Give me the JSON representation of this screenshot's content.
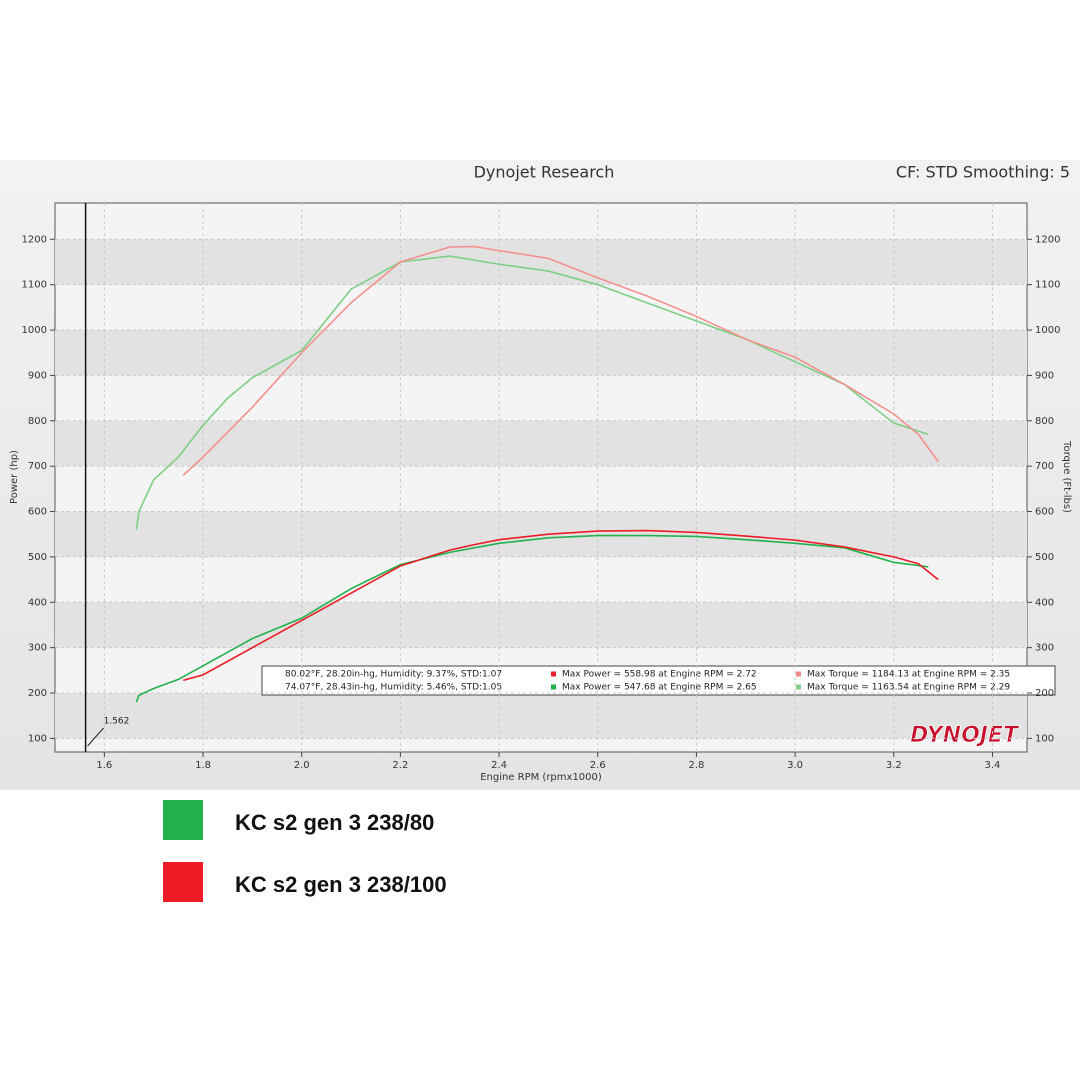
{
  "chart_data": {
    "type": "line",
    "title": "Dynojet Research",
    "subtitle": "CF: STD Smoothing: 5",
    "x_label": "Engine RPM (rpmx1000)",
    "y_label": "Power (hp)",
    "y2_label": "Torque (Ft-lbs)",
    "logo": "DYNOJET",
    "cursor": 1.562,
    "xlim": [
      1.5,
      3.47
    ],
    "xticks": [
      1.6,
      1.8,
      {
        "value": 2,
        "label": "2.0"
      },
      2.2,
      2.4,
      2.6,
      2.8,
      {
        "value": 3,
        "label": "3.0"
      },
      3.2,
      3.4
    ],
    "ylim": [
      70,
      1280
    ],
    "yticks": [
      100,
      200,
      300,
      400,
      500,
      600,
      700,
      800,
      900,
      1000,
      1100,
      1200
    ],
    "y2lim": [
      70,
      1280
    ],
    "y2ticks": [
      100,
      200,
      300,
      400,
      500,
      600,
      700,
      800,
      900,
      1000,
      1100,
      1200
    ],
    "grid": true,
    "info": [
      {
        "conditions": "80.02°F, 28.20in-hg, Humidity: 9.37%, STD:1.07",
        "power": "Max Power = 558.98 at Engine RPM = 2.72",
        "torque": "Max Torque = 1184.13 at Engine RPM = 2.35",
        "color": "#e8212a",
        "torque_color": "#f08a8a"
      },
      {
        "conditions": "74.07°F, 28.43in-hg, Humidity: 5.46%, STD:1.05",
        "power": "Max Power = 547.68 at Engine RPM = 2.65",
        "torque": "Max Torque = 1163.54 at Engine RPM = 2.29",
        "color": "#20b04a",
        "torque_color": "#7fcf8a"
      }
    ],
    "series": [
      {
        "name": "KC s2 gen 3 238/80",
        "color": "#22b14c",
        "torque_color": "#7dcf86",
        "x": [
          1.665,
          1.67,
          1.7,
          1.75,
          1.8,
          1.85,
          1.9,
          2.0,
          2.1,
          2.2,
          2.3,
          2.4,
          2.5,
          2.6,
          2.7,
          2.8,
          2.9,
          3.0,
          3.1,
          3.2,
          3.27
        ],
        "power": [
          180,
          195,
          210,
          230,
          260,
          290,
          320,
          365,
          430,
          483,
          510,
          530,
          542,
          547,
          547,
          545,
          538,
          530,
          520,
          488,
          478
        ],
        "torque": [
          560,
          600,
          670,
          720,
          790,
          850,
          895,
          955,
          1090,
          1150,
          1163,
          1145,
          1130,
          1100,
          1060,
          1020,
          980,
          930,
          880,
          795,
          770
        ]
      },
      {
        "name": "KC s2 gen 3 238/100",
        "color": "#ed1c24",
        "torque_color": "#f4908e",
        "x": [
          1.76,
          1.8,
          1.9,
          2.0,
          2.1,
          2.2,
          2.3,
          2.35,
          2.4,
          2.5,
          2.6,
          2.7,
          2.8,
          2.9,
          3.0,
          3.1,
          3.2,
          3.25,
          3.29
        ],
        "power": [
          228,
          240,
          300,
          360,
          420,
          480,
          515,
          527,
          538,
          550,
          557,
          558,
          554,
          546,
          537,
          522,
          500,
          485,
          450
        ],
        "torque": [
          680,
          720,
          830,
          950,
          1060,
          1150,
          1183,
          1184,
          1175,
          1158,
          1115,
          1075,
          1030,
          980,
          940,
          880,
          815,
          770,
          710
        ]
      }
    ]
  }
}
